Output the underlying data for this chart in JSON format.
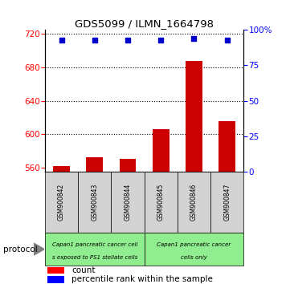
{
  "title": "GDS5099 / ILMN_1664798",
  "samples": [
    "GSM900842",
    "GSM900843",
    "GSM900844",
    "GSM900845",
    "GSM900846",
    "GSM900847"
  ],
  "counts": [
    562,
    572,
    571,
    606,
    688,
    616
  ],
  "percentile_ranks": [
    93,
    93,
    93,
    93,
    94,
    93
  ],
  "ylim_left": [
    555,
    725
  ],
  "ylim_right": [
    0,
    100
  ],
  "yticks_left": [
    560,
    600,
    640,
    680,
    720
  ],
  "yticks_right": [
    0,
    25,
    50,
    75,
    100
  ],
  "bar_color": "#cc0000",
  "scatter_color": "#0000cc",
  "grid_color": "#555555",
  "group1_label_line1": "Capan1 pancreatic cancer cell",
  "group1_label_line2": "s exposed to PS1 stellate cells",
  "group2_label_line1": "Capan1 pancreatic cancer",
  "group2_label_line2": "cells only",
  "group_color": "#90ee90",
  "sample_box_color": "#d3d3d3",
  "protocol_label": "protocol",
  "legend_count_label": "count",
  "legend_percentile_label": "percentile rank within the sample",
  "bar_width": 0.5,
  "scatter_marker": "s",
  "scatter_size": 20
}
